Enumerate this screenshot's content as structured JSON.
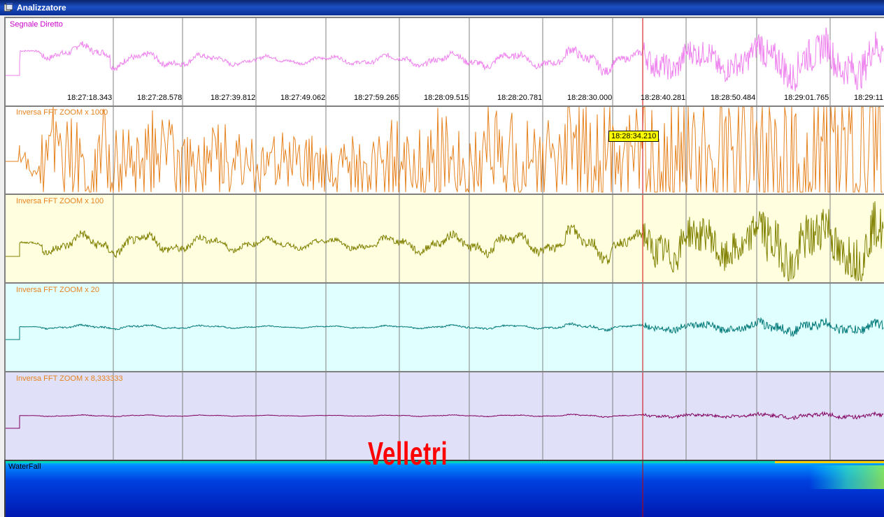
{
  "window": {
    "title": "Analizzatore",
    "icon": "app-window-icon"
  },
  "panels": [
    {
      "id": "diretto",
      "label": "Segnale Diretto",
      "label_color": "#cc00cc",
      "bg": "#ffffff",
      "trace_color": "#ee82ee"
    },
    {
      "id": "zoom1000",
      "label": "Inversa FFT ZOOM x 1000",
      "label_color": "#e6821e",
      "bg": "#ffffff",
      "trace_color": "#e6821e"
    },
    {
      "id": "zoom100",
      "label": "Inversa FFT ZOOM x 100",
      "label_color": "#e6821e",
      "bg": "#ffffe0",
      "trace_color": "#808000"
    },
    {
      "id": "zoom20",
      "label": "Inversa FFT ZOOM x 20",
      "label_color": "#e6821e",
      "bg": "#e0ffff",
      "trace_color": "#007878"
    },
    {
      "id": "zoom8",
      "label": "Inversa FFT ZOOM x 8,333333",
      "label_color": "#e6821e",
      "bg": "#e0e0f8",
      "trace_color": "#800060"
    },
    {
      "id": "waterfall",
      "label": "WaterFall",
      "label_color": "#ff00ff"
    }
  ],
  "time_ticks": [
    "18:27:18.343",
    "18:27:28.578",
    "18:27:39.812",
    "18:27:49.062",
    "18:27:59.265",
    "18:28:09.515",
    "18:28:20.781",
    "18:28:30.000",
    "18:28:40.281",
    "18:28:50.484",
    "18:29:01.765",
    "18:29:11"
  ],
  "cursor": {
    "tooltip": "18:28:34.210",
    "color": "#cc0000"
  },
  "overlay_text": "Velletri",
  "grid_color": "#808080"
}
